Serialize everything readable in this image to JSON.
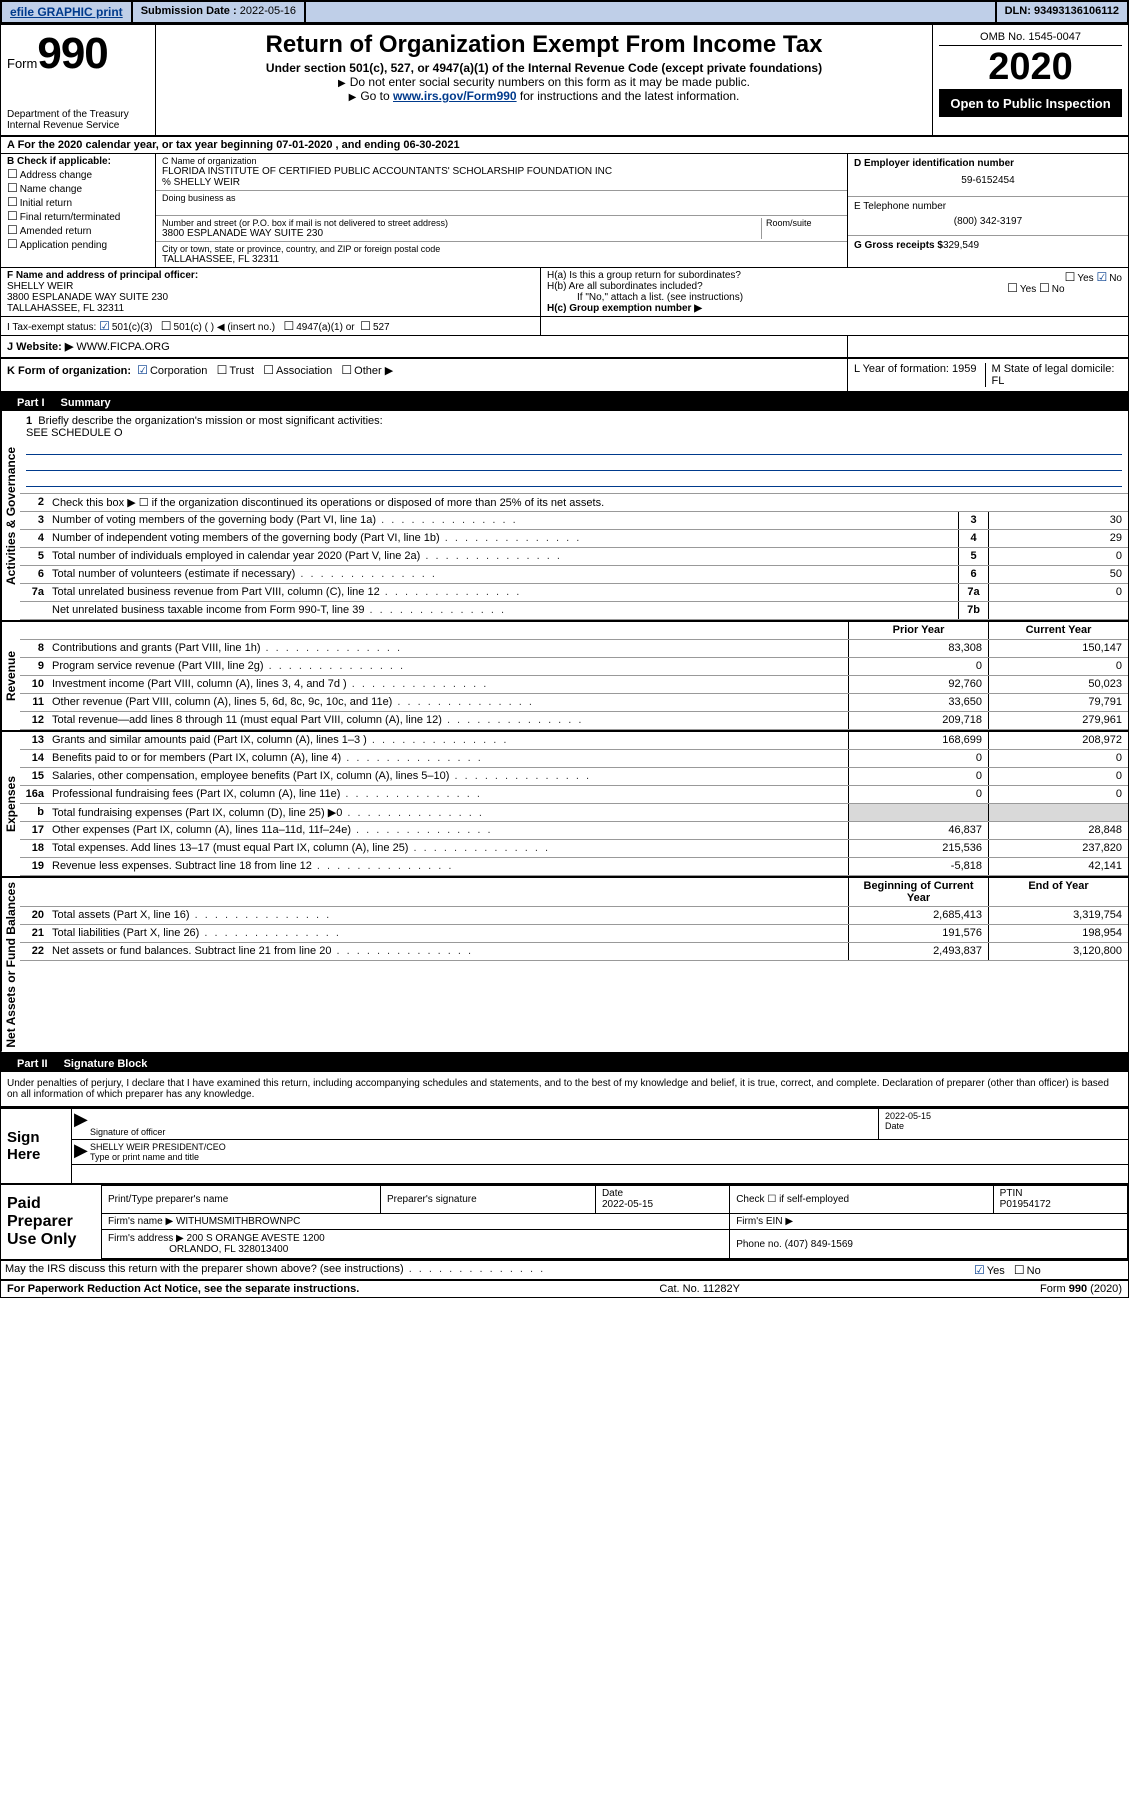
{
  "topbar": {
    "efile": "efile GRAPHIC print",
    "subdate_label": "Submission Date :",
    "subdate": "2022-05-16",
    "dln_label": "DLN:",
    "dln": "93493136106112"
  },
  "header": {
    "form_label": "Form",
    "form_number": "990",
    "dept": "Department of the Treasury",
    "irs": "Internal Revenue Service",
    "title": "Return of Organization Exempt From Income Tax",
    "subtitle1": "Under section 501(c), 527, or 4947(a)(1) of the Internal Revenue Code (except private foundations)",
    "subtitle2": "Do not enter social security numbers on this form as it may be made public.",
    "subtitle3_pre": "Go to ",
    "subtitle3_link": "www.irs.gov/Form990",
    "subtitle3_post": " for instructions and the latest information.",
    "omb": "OMB No. 1545-0047",
    "year": "2020",
    "open": "Open to Public Inspection"
  },
  "lineA": {
    "text": "A For the 2020 calendar year, or tax year beginning 07-01-2020    , and ending 06-30-2021"
  },
  "sectionB": {
    "label": "B Check if applicable:",
    "opts": [
      "Address change",
      "Name change",
      "Initial return",
      "Final return/terminated",
      "Amended return",
      "Application pending"
    ]
  },
  "sectionC": {
    "name_label": "C Name of organization",
    "name": "FLORIDA INSTITUTE OF CERTIFIED PUBLIC ACCOUNTANTS' SCHOLARSHIP FOUNDATION INC",
    "care_of": "% SHELLY WEIR",
    "dba_label": "Doing business as",
    "addr_label": "Number and street (or P.O. box if mail is not delivered to street address)",
    "room_label": "Room/suite",
    "addr": "3800 ESPLANADE WAY SUITE 230",
    "city_label": "City or town, state or province, country, and ZIP or foreign postal code",
    "city": "TALLAHASSEE, FL  32311"
  },
  "sectionD": {
    "label": "D Employer identification number",
    "ein": "59-6152454"
  },
  "sectionE": {
    "label": "E Telephone number",
    "phone": "(800) 342-3197"
  },
  "sectionG": {
    "label": "G Gross receipts $",
    "val": "329,549"
  },
  "sectionF": {
    "label": "F  Name and address of principal officer:",
    "name": "SHELLY WEIR",
    "addr1": "3800 ESPLANADE WAY SUITE 230",
    "addr2": "TALLAHASSEE, FL  32311"
  },
  "sectionH": {
    "a": "H(a)  Is this a group return for subordinates?",
    "a_yes": "Yes",
    "a_no": "No",
    "b": "H(b)  Are all subordinates included?",
    "b_yes": "Yes",
    "b_no": "No",
    "note": "If \"No,\" attach a list. (see instructions)",
    "c": "H(c)  Group exemption number ▶"
  },
  "sectionI": {
    "label": "I Tax-exempt status:",
    "c3": "501(c)(3)",
    "c": "501(c) (  ) ◀ (insert no.)",
    "a1": "4947(a)(1) or",
    "s527": "527"
  },
  "sectionJ": {
    "label": "J  Website: ▶",
    "val": "WWW.FICPA.ORG"
  },
  "sectionK": {
    "label": "K Form of organization:",
    "corp": "Corporation",
    "trust": "Trust",
    "assoc": "Association",
    "other": "Other ▶"
  },
  "sectionLM": {
    "l": "L Year of formation: 1959",
    "m": "M State of legal domicile: FL"
  },
  "part1": {
    "num": "Part I",
    "title": "Summary",
    "side1": "Activities & Governance",
    "side2": "Revenue",
    "side3": "Expenses",
    "side4": "Net Assets or Fund Balances",
    "q1": "Briefly describe the organization's mission or most significant activities:",
    "q1_val": "SEE SCHEDULE O",
    "q2": "Check this box ▶ ☐  if the organization discontinued its operations or disposed of more than 25% of its net assets.",
    "rows_gov": [
      {
        "n": "3",
        "t": "Number of voting members of the governing body (Part VI, line 1a)",
        "b": "3",
        "v": "30"
      },
      {
        "n": "4",
        "t": "Number of independent voting members of the governing body (Part VI, line 1b)",
        "b": "4",
        "v": "29"
      },
      {
        "n": "5",
        "t": "Total number of individuals employed in calendar year 2020 (Part V, line 2a)",
        "b": "5",
        "v": "0"
      },
      {
        "n": "6",
        "t": "Total number of volunteers (estimate if necessary)",
        "b": "6",
        "v": "50"
      },
      {
        "n": "7a",
        "t": "Total unrelated business revenue from Part VIII, column (C), line 12",
        "b": "7a",
        "v": "0"
      },
      {
        "n": "",
        "t": "Net unrelated business taxable income from Form 990-T, line 39",
        "b": "7b",
        "v": ""
      }
    ],
    "hdr_prior": "Prior Year",
    "hdr_curr": "Current Year",
    "rows_rev": [
      {
        "n": "8",
        "t": "Contributions and grants (Part VIII, line 1h)",
        "p": "83,308",
        "c": "150,147"
      },
      {
        "n": "9",
        "t": "Program service revenue (Part VIII, line 2g)",
        "p": "0",
        "c": "0"
      },
      {
        "n": "10",
        "t": "Investment income (Part VIII, column (A), lines 3, 4, and 7d )",
        "p": "92,760",
        "c": "50,023"
      },
      {
        "n": "11",
        "t": "Other revenue (Part VIII, column (A), lines 5, 6d, 8c, 9c, 10c, and 11e)",
        "p": "33,650",
        "c": "79,791"
      },
      {
        "n": "12",
        "t": "Total revenue—add lines 8 through 11 (must equal Part VIII, column (A), line 12)",
        "p": "209,718",
        "c": "279,961"
      }
    ],
    "rows_exp": [
      {
        "n": "13",
        "t": "Grants and similar amounts paid (Part IX, column (A), lines 1–3 )",
        "p": "168,699",
        "c": "208,972"
      },
      {
        "n": "14",
        "t": "Benefits paid to or for members (Part IX, column (A), line 4)",
        "p": "0",
        "c": "0"
      },
      {
        "n": "15",
        "t": "Salaries, other compensation, employee benefits (Part IX, column (A), lines 5–10)",
        "p": "0",
        "c": "0"
      },
      {
        "n": "16a",
        "t": "Professional fundraising fees (Part IX, column (A), line 11e)",
        "p": "0",
        "c": "0"
      },
      {
        "n": "b",
        "t": "Total fundraising expenses (Part IX, column (D), line 25) ▶0",
        "p": "",
        "c": ""
      },
      {
        "n": "17",
        "t": "Other expenses (Part IX, column (A), lines 11a–11d, 11f–24e)",
        "p": "46,837",
        "c": "28,848"
      },
      {
        "n": "18",
        "t": "Total expenses. Add lines 13–17 (must equal Part IX, column (A), line 25)",
        "p": "215,536",
        "c": "237,820"
      },
      {
        "n": "19",
        "t": "Revenue less expenses. Subtract line 18 from line 12",
        "p": "-5,818",
        "c": "42,141"
      }
    ],
    "hdr_beg": "Beginning of Current Year",
    "hdr_end": "End of Year",
    "rows_net": [
      {
        "n": "20",
        "t": "Total assets (Part X, line 16)",
        "p": "2,685,413",
        "c": "3,319,754"
      },
      {
        "n": "21",
        "t": "Total liabilities (Part X, line 26)",
        "p": "191,576",
        "c": "198,954"
      },
      {
        "n": "22",
        "t": "Net assets or fund balances. Subtract line 21 from line 20",
        "p": "2,493,837",
        "c": "3,120,800"
      }
    ]
  },
  "part2": {
    "num": "Part II",
    "title": "Signature Block"
  },
  "perjury": "Under penalties of perjury, I declare that I have examined this return, including accompanying schedules and statements, and to the best of my knowledge and belief, it is true, correct, and complete. Declaration of preparer (other than officer) is based on all information of which preparer has any knowledge.",
  "sign": {
    "here": "Sign Here",
    "sig_officer": "Signature of officer",
    "date": "2022-05-15",
    "date_lbl": "Date",
    "name": "SHELLY WEIR  PRESIDENT/CEO",
    "name_lbl": "Type or print name and title"
  },
  "paid": {
    "lbl": "Paid Preparer Use Only",
    "h_name": "Print/Type preparer's name",
    "h_sig": "Preparer's signature",
    "h_date": "Date",
    "date": "2022-05-15",
    "check": "Check ☐  if self-employed",
    "ptin_lbl": "PTIN",
    "ptin": "P01954172",
    "firm_lbl": "Firm's name    ▶",
    "firm": "WITHUMSMITHBROWNPC",
    "ein_lbl": "Firm's EIN ▶",
    "addr_lbl": "Firm's address ▶",
    "addr1": "200 S ORANGE AVESTE 1200",
    "addr2": "ORLANDO, FL  328013400",
    "phone_lbl": "Phone no.",
    "phone": "(407) 849-1569"
  },
  "discuss": {
    "q": "May the IRS discuss this return with the preparer shown above? (see instructions)",
    "yes": "Yes",
    "no": "No"
  },
  "footer": {
    "pra": "For Paperwork Reduction Act Notice, see the separate instructions.",
    "cat": "Cat. No. 11282Y",
    "form": "Form 990 (2020)"
  }
}
